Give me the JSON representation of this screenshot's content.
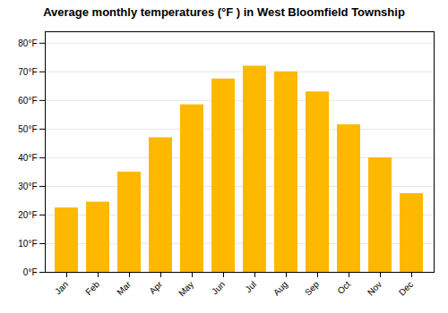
{
  "chart_data": {
    "type": "bar",
    "title": "Average monthly temperatures (°F ) in West Bloomfield Township",
    "categories": [
      "Jan",
      "Feb",
      "Mar",
      "Apr",
      "May",
      "Jun",
      "Jul",
      "Aug",
      "Sep",
      "Oct",
      "Nov",
      "Dec"
    ],
    "values": [
      22.5,
      24.5,
      35.0,
      47.0,
      58.5,
      67.5,
      72.0,
      70.0,
      63.0,
      51.5,
      40.0,
      27.5
    ],
    "color": "#FFB800",
    "ylim": [
      0,
      84
    ],
    "yticks": [
      {
        "value": 0,
        "label": "0°F"
      },
      {
        "value": 10,
        "label": "10°F"
      },
      {
        "value": 20,
        "label": "20°F"
      },
      {
        "value": 30,
        "label": "30°F"
      },
      {
        "value": 40,
        "label": "40°F"
      },
      {
        "value": 50,
        "label": "50°F"
      },
      {
        "value": 60,
        "label": "60°F"
      },
      {
        "value": 70,
        "label": "70°F"
      },
      {
        "value": 80,
        "label": "80°F"
      }
    ],
    "grid": true
  }
}
